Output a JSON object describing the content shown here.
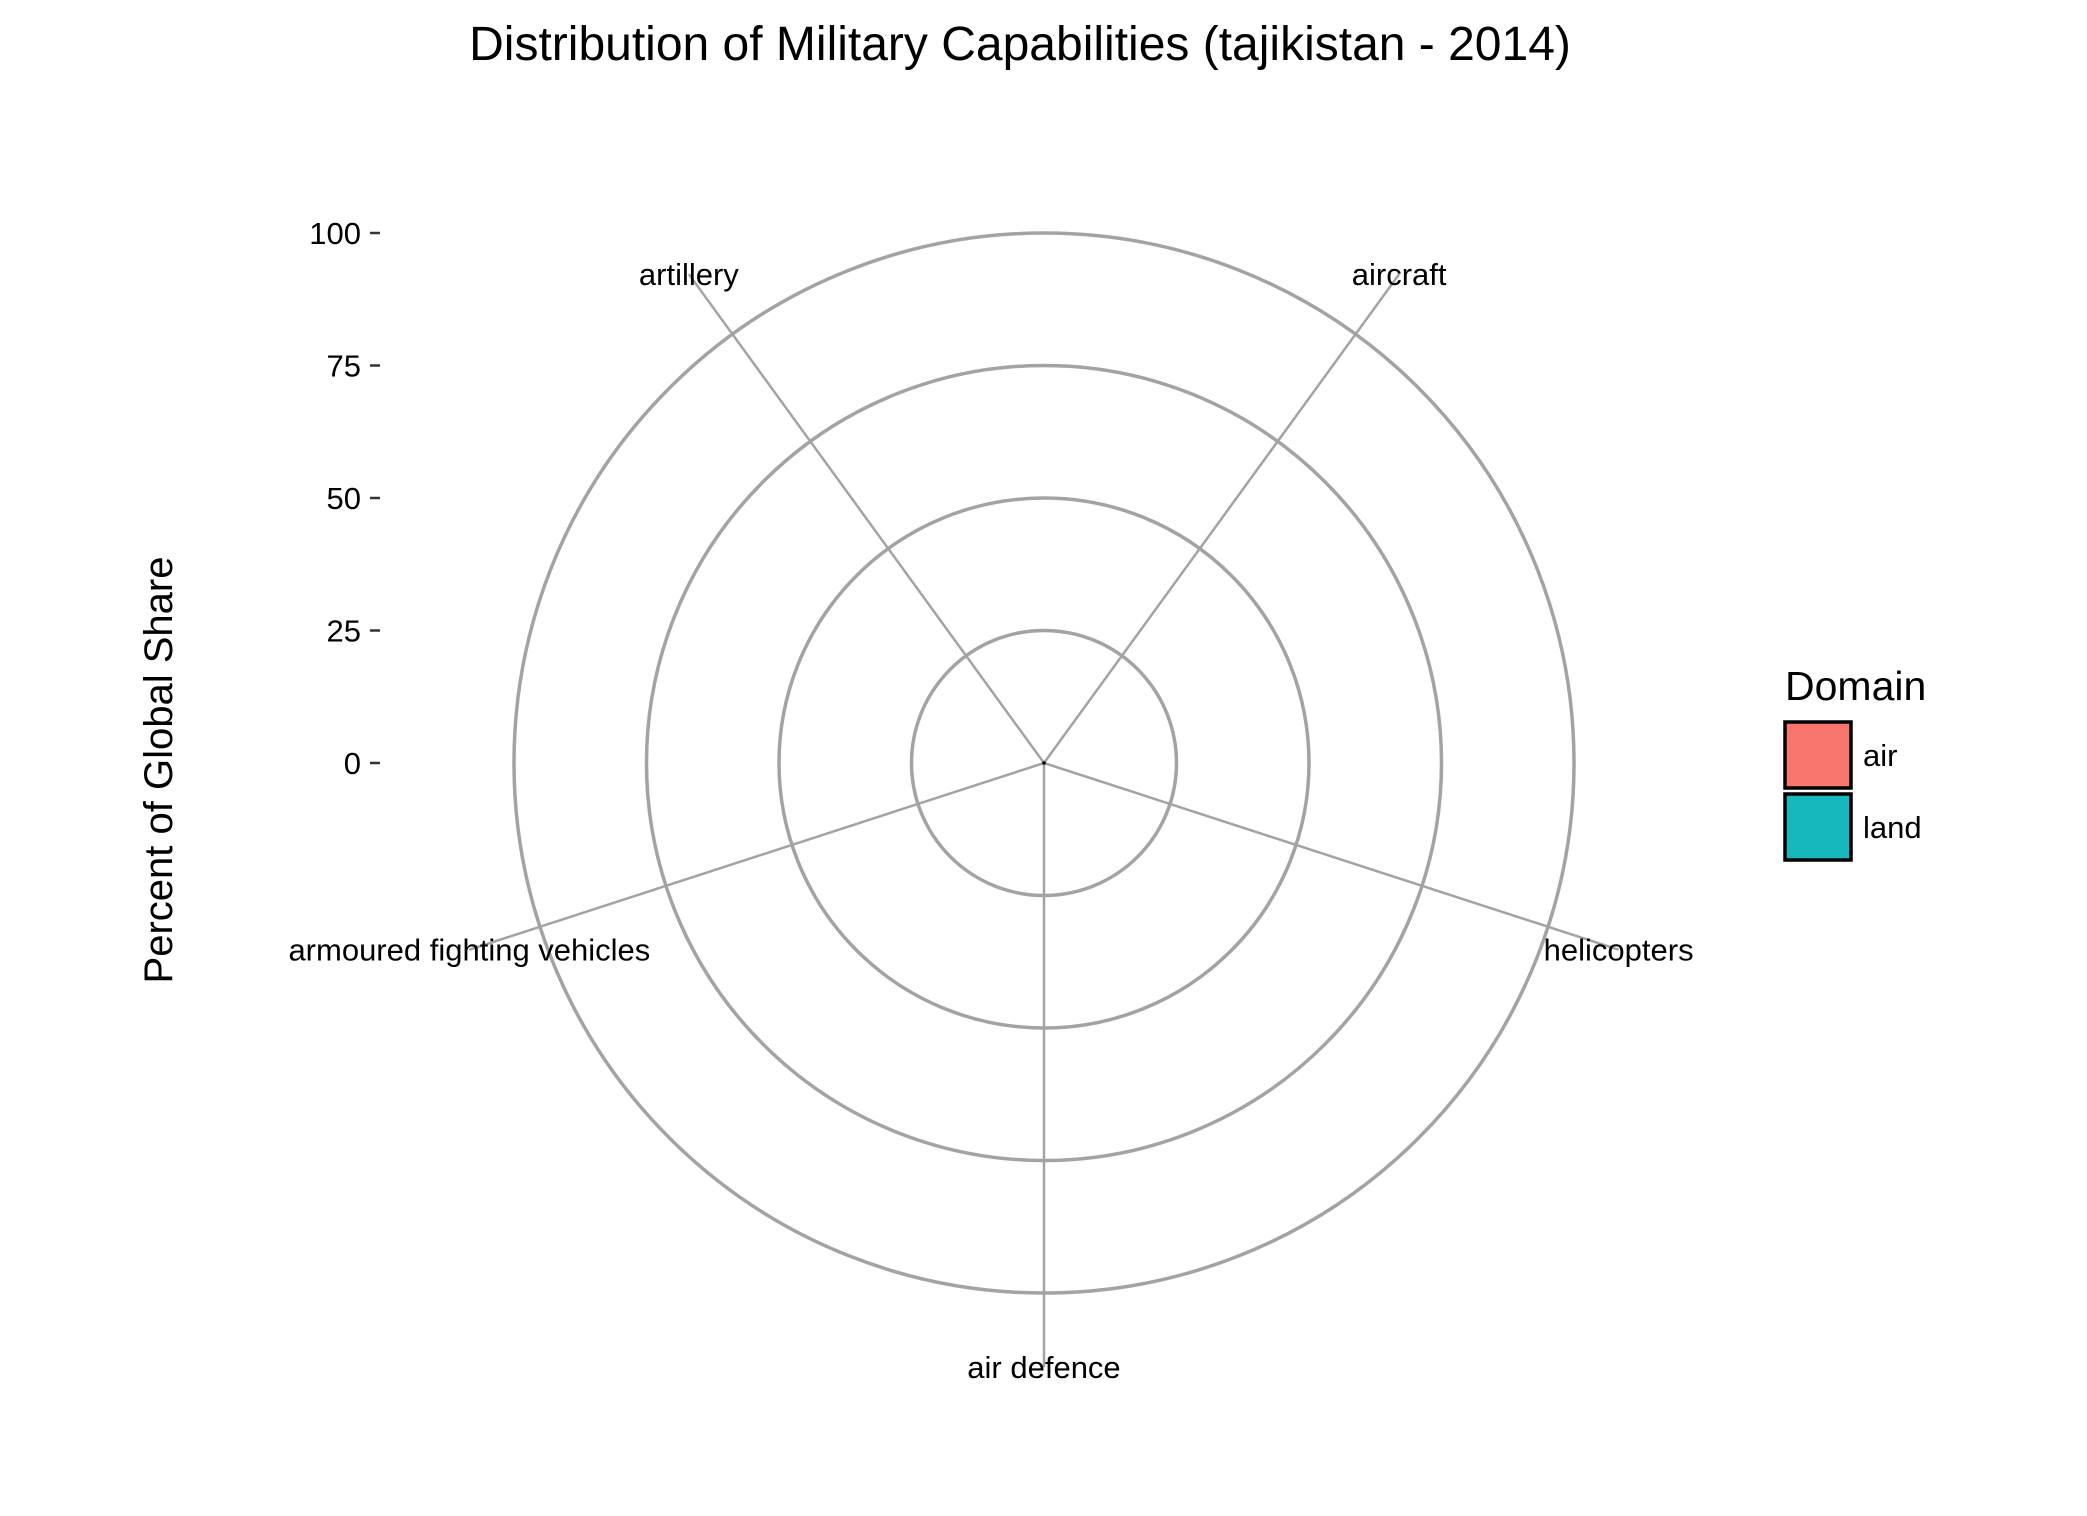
{
  "chart_data": {
    "type": "radar",
    "title": "Distribution of Military Capabilities (tajikistan - 2014)",
    "xlabel": "",
    "ylabel": "Percent of Global Share",
    "ylim": [
      0,
      100
    ],
    "yticks": [
      0,
      25,
      50,
      75,
      100
    ],
    "grid": true,
    "categories": [
      "aircraft",
      "helicopters",
      "air defence",
      "armoured fighting vehicles",
      "artillery"
    ],
    "series": [
      {
        "name": "air",
        "color": "#f8766d",
        "values": [
          0.01,
          0.01,
          0.01,
          null,
          null
        ]
      },
      {
        "name": "land",
        "color": "#00bfc4",
        "values": [
          null,
          null,
          null,
          0.01,
          0.01
        ]
      }
    ],
    "legend": {
      "title": "Domain",
      "position": "right",
      "entries": [
        {
          "label": "air",
          "color": "#f8766d"
        },
        {
          "label": "land",
          "color": "#17b8bd"
        }
      ]
    }
  }
}
